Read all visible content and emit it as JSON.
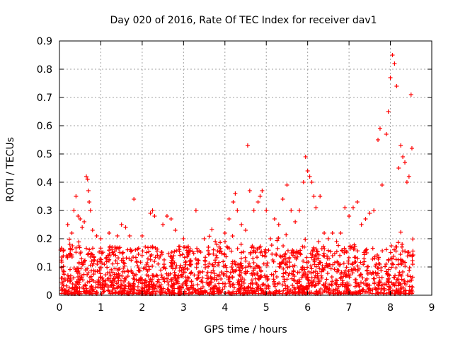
{
  "chart_data": {
    "type": "scatter",
    "title": "Day 020 of 2016, Rate Of TEC Index for receiver dav1",
    "xlabel": "GPS time / hours",
    "ylabel": "ROTI / TECUs",
    "xlim": [
      0,
      9
    ],
    "ylim": [
      0,
      0.9
    ],
    "x_ticks": [
      "0",
      "1",
      "2",
      "3",
      "4",
      "5",
      "6",
      "7",
      "8",
      "9"
    ],
    "y_ticks": [
      "0",
      "0.1",
      "0.2",
      "0.3",
      "0.4",
      "0.5",
      "0.6",
      "0.7",
      "0.8",
      "0.9"
    ],
    "grid": true,
    "marker": "plus",
    "color": "#ff0000",
    "x_range": [
      0.02,
      8.55
    ],
    "points": [
      [
        0.1,
        0.16
      ],
      [
        0.2,
        0.25
      ],
      [
        0.25,
        0.18
      ],
      [
        0.3,
        0.22
      ],
      [
        0.35,
        0.3
      ],
      [
        0.4,
        0.35
      ],
      [
        0.45,
        0.28
      ],
      [
        0.5,
        0.27
      ],
      [
        0.55,
        0.24
      ],
      [
        0.6,
        0.26
      ],
      [
        0.65,
        0.42
      ],
      [
        0.68,
        0.41
      ],
      [
        0.7,
        0.37
      ],
      [
        0.72,
        0.33
      ],
      [
        0.75,
        0.3
      ],
      [
        0.8,
        0.23
      ],
      [
        0.9,
        0.21
      ],
      [
        1.0,
        0.2
      ],
      [
        1.2,
        0.22
      ],
      [
        1.4,
        0.21
      ],
      [
        1.5,
        0.25
      ],
      [
        1.6,
        0.24
      ],
      [
        1.7,
        0.21
      ],
      [
        1.8,
        0.34
      ],
      [
        2.0,
        0.21
      ],
      [
        2.2,
        0.29
      ],
      [
        2.25,
        0.3
      ],
      [
        2.3,
        0.28
      ],
      [
        2.5,
        0.25
      ],
      [
        2.6,
        0.28
      ],
      [
        2.7,
        0.27
      ],
      [
        2.8,
        0.23
      ],
      [
        3.0,
        0.2
      ],
      [
        3.1,
        0.15
      ],
      [
        3.3,
        0.3
      ],
      [
        3.5,
        0.2
      ],
      [
        3.6,
        0.17
      ],
      [
        3.8,
        0.18
      ],
      [
        4.0,
        0.22
      ],
      [
        4.1,
        0.27
      ],
      [
        4.2,
        0.33
      ],
      [
        4.25,
        0.36
      ],
      [
        4.3,
        0.3
      ],
      [
        4.4,
        0.25
      ],
      [
        4.5,
        0.23
      ],
      [
        4.55,
        0.53
      ],
      [
        4.6,
        0.37
      ],
      [
        4.7,
        0.3
      ],
      [
        4.8,
        0.33
      ],
      [
        4.85,
        0.35
      ],
      [
        4.9,
        0.37
      ],
      [
        5.0,
        0.3
      ],
      [
        5.1,
        0.2
      ],
      [
        5.2,
        0.27
      ],
      [
        5.3,
        0.25
      ],
      [
        5.4,
        0.34
      ],
      [
        5.5,
        0.39
      ],
      [
        5.6,
        0.3
      ],
      [
        5.7,
        0.26
      ],
      [
        5.8,
        0.3
      ],
      [
        5.9,
        0.4
      ],
      [
        5.95,
        0.49
      ],
      [
        6.0,
        0.44
      ],
      [
        6.05,
        0.42
      ],
      [
        6.1,
        0.4
      ],
      [
        6.15,
        0.35
      ],
      [
        6.2,
        0.31
      ],
      [
        6.3,
        0.35
      ],
      [
        6.4,
        0.22
      ],
      [
        6.5,
        0.2
      ],
      [
        6.6,
        0.22
      ],
      [
        6.7,
        0.19
      ],
      [
        6.8,
        0.22
      ],
      [
        6.9,
        0.31
      ],
      [
        7.0,
        0.28
      ],
      [
        7.1,
        0.31
      ],
      [
        7.2,
        0.33
      ],
      [
        7.3,
        0.25
      ],
      [
        7.4,
        0.27
      ],
      [
        7.5,
        0.29
      ],
      [
        7.6,
        0.3
      ],
      [
        7.7,
        0.55
      ],
      [
        7.75,
        0.59
      ],
      [
        7.8,
        0.39
      ],
      [
        7.9,
        0.57
      ],
      [
        7.95,
        0.65
      ],
      [
        8.0,
        0.77
      ],
      [
        8.05,
        0.85
      ],
      [
        8.1,
        0.82
      ],
      [
        8.15,
        0.74
      ],
      [
        8.2,
        0.45
      ],
      [
        8.25,
        0.53
      ],
      [
        8.3,
        0.49
      ],
      [
        8.35,
        0.47
      ],
      [
        8.4,
        0.4
      ],
      [
        8.45,
        0.42
      ],
      [
        8.5,
        0.71
      ],
      [
        8.52,
        0.52
      ]
    ]
  }
}
